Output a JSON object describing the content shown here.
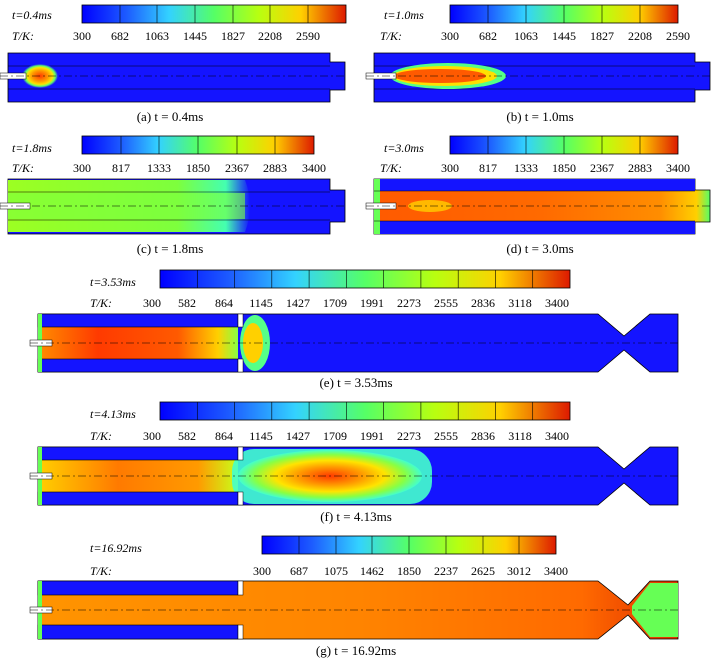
{
  "panels": [
    {
      "id": "a",
      "time_label": "t=0.4ms",
      "unit_label": "T/K:",
      "ticks": [
        "300",
        "682",
        "1063",
        "1445",
        "1827",
        "2208",
        "2590"
      ],
      "caption": "(a) t = 0.4ms"
    },
    {
      "id": "b",
      "time_label": "t=1.0ms",
      "unit_label": "T/K:",
      "ticks": [
        "300",
        "682",
        "1063",
        "1445",
        "1827",
        "2208",
        "2590"
      ],
      "caption": "(b) t = 1.0ms"
    },
    {
      "id": "c",
      "time_label": "t=1.8ms",
      "unit_label": "T/K:",
      "ticks": [
        "300",
        "817",
        "1333",
        "1850",
        "2367",
        "2883",
        "3400"
      ],
      "caption": "(c) t = 1.8ms"
    },
    {
      "id": "d",
      "time_label": "t=3.0ms",
      "unit_label": "T/K:",
      "ticks": [
        "300",
        "817",
        "1333",
        "1850",
        "2367",
        "2883",
        "3400"
      ],
      "caption": "(d) t = 3.0ms"
    },
    {
      "id": "e",
      "time_label": "t=3.53ms",
      "unit_label": "T/K:",
      "ticks": [
        "300",
        "582",
        "864",
        "1145",
        "1427",
        "1709",
        "1991",
        "2273",
        "2555",
        "2836",
        "3118",
        "3400"
      ],
      "caption": "(e) t = 3.53ms"
    },
    {
      "id": "f",
      "time_label": "t=4.13ms",
      "unit_label": "T/K:",
      "ticks": [
        "300",
        "582",
        "864",
        "1145",
        "1427",
        "1709",
        "1991",
        "2273",
        "2555",
        "2836",
        "3118",
        "3400"
      ],
      "caption": "(f) t = 4.13ms"
    },
    {
      "id": "g",
      "time_label": "t=16.92ms",
      "unit_label": "T/K:",
      "ticks": [
        "300",
        "687",
        "1075",
        "1462",
        "1850",
        "2237",
        "2625",
        "3012",
        "3400"
      ],
      "caption": "(g) t = 16.92ms"
    }
  ],
  "colors": {
    "scale": [
      "#0000ff",
      "#2a6bff",
      "#33c8ff",
      "#44ffb0",
      "#6cff3a",
      "#c8ff1a",
      "#ffe400",
      "#ff9a00",
      "#ff4a00",
      "#d40000"
    ],
    "cold": "#1414ff",
    "outline": "#000000"
  }
}
